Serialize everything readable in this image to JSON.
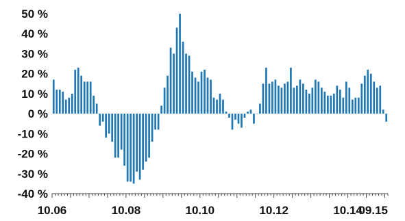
{
  "chart_data": {
    "type": "bar",
    "title": "",
    "xlabel": "",
    "ylabel": "",
    "ylim": [
      -40,
      50
    ],
    "y_ticks": [
      50,
      40,
      30,
      20,
      10,
      0,
      -10,
      -20,
      -30,
      -40
    ],
    "y_tick_labels": [
      "50 %",
      "40 %",
      "30 %",
      "20 %",
      "10 %",
      "0 %",
      "-10 %",
      "-20 %",
      "-30 %",
      "-40 %"
    ],
    "x_tick_labels": [
      "10.06",
      "10.08",
      "10.10",
      "10.12",
      "10.14",
      "09.15"
    ],
    "x_tick_positions": [
      0,
      24,
      48,
      72,
      96,
      105
    ],
    "grid": false,
    "bar_color": "#1f77b4",
    "series": [
      {
        "values": [
          17,
          12,
          12,
          11,
          7,
          8,
          10,
          22,
          23,
          19,
          16,
          16,
          16,
          9,
          5,
          -6,
          -4,
          -12,
          -10,
          -14,
          -22,
          -22,
          -18,
          -26,
          -34,
          -34,
          -35,
          -29,
          -33,
          -28,
          -24,
          -22,
          -14,
          -8,
          -8,
          4,
          13,
          19,
          33,
          30,
          43,
          50,
          36,
          30,
          29,
          21,
          18,
          16,
          21,
          22,
          18,
          17,
          8,
          7,
          10,
          7,
          1,
          -2,
          -8,
          -3,
          -5,
          -7,
          -2,
          1,
          2,
          -5,
          0,
          5,
          15,
          23,
          15,
          16,
          17,
          14,
          13,
          15,
          16,
          23,
          13,
          14,
          17,
          15,
          12,
          10,
          13,
          17,
          16,
          13,
          11,
          9,
          9,
          10,
          14,
          12,
          8,
          16,
          13,
          7,
          8,
          8,
          15,
          19,
          22,
          20,
          16,
          13,
          14,
          2,
          -4
        ]
      }
    ]
  }
}
